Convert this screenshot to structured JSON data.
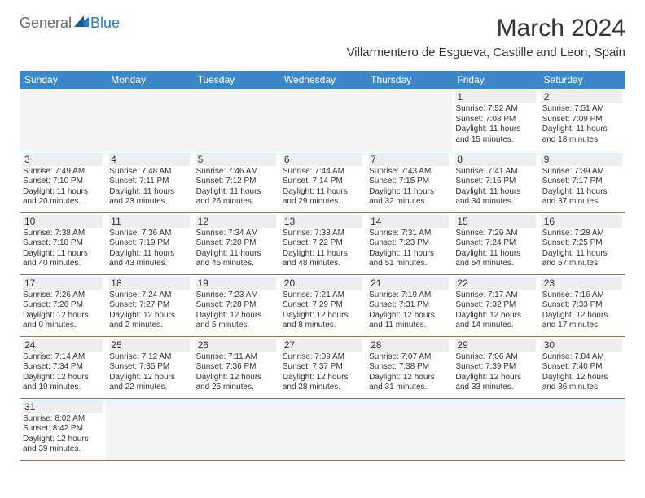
{
  "logo": {
    "part1": "General",
    "part2": "Blue"
  },
  "title": "March 2024",
  "location": "Villarmentero de Esgueva, Castille and Leon, Spain",
  "colors": {
    "header_bg": "#3b87c8",
    "header_text": "#ffffff",
    "daynum_bg": "#eeeeee",
    "empty_bg": "#f3f3f3",
    "border": "#3b87c8",
    "text": "#333333",
    "logo_gray": "#6a6a6a",
    "logo_blue": "#2d7bbf"
  },
  "weekdays": [
    "Sunday",
    "Monday",
    "Tuesday",
    "Wednesday",
    "Thursday",
    "Friday",
    "Saturday"
  ],
  "weeks": [
    [
      null,
      null,
      null,
      null,
      null,
      {
        "d": "1",
        "sr": "Sunrise: 7:52 AM",
        "ss": "Sunset: 7:08 PM",
        "dl1": "Daylight: 11 hours",
        "dl2": "and 15 minutes."
      },
      {
        "d": "2",
        "sr": "Sunrise: 7:51 AM",
        "ss": "Sunset: 7:09 PM",
        "dl1": "Daylight: 11 hours",
        "dl2": "and 18 minutes."
      }
    ],
    [
      {
        "d": "3",
        "sr": "Sunrise: 7:49 AM",
        "ss": "Sunset: 7:10 PM",
        "dl1": "Daylight: 11 hours",
        "dl2": "and 20 minutes."
      },
      {
        "d": "4",
        "sr": "Sunrise: 7:48 AM",
        "ss": "Sunset: 7:11 PM",
        "dl1": "Daylight: 11 hours",
        "dl2": "and 23 minutes."
      },
      {
        "d": "5",
        "sr": "Sunrise: 7:46 AM",
        "ss": "Sunset: 7:12 PM",
        "dl1": "Daylight: 11 hours",
        "dl2": "and 26 minutes."
      },
      {
        "d": "6",
        "sr": "Sunrise: 7:44 AM",
        "ss": "Sunset: 7:14 PM",
        "dl1": "Daylight: 11 hours",
        "dl2": "and 29 minutes."
      },
      {
        "d": "7",
        "sr": "Sunrise: 7:43 AM",
        "ss": "Sunset: 7:15 PM",
        "dl1": "Daylight: 11 hours",
        "dl2": "and 32 minutes."
      },
      {
        "d": "8",
        "sr": "Sunrise: 7:41 AM",
        "ss": "Sunset: 7:16 PM",
        "dl1": "Daylight: 11 hours",
        "dl2": "and 34 minutes."
      },
      {
        "d": "9",
        "sr": "Sunrise: 7:39 AM",
        "ss": "Sunset: 7:17 PM",
        "dl1": "Daylight: 11 hours",
        "dl2": "and 37 minutes."
      }
    ],
    [
      {
        "d": "10",
        "sr": "Sunrise: 7:38 AM",
        "ss": "Sunset: 7:18 PM",
        "dl1": "Daylight: 11 hours",
        "dl2": "and 40 minutes."
      },
      {
        "d": "11",
        "sr": "Sunrise: 7:36 AM",
        "ss": "Sunset: 7:19 PM",
        "dl1": "Daylight: 11 hours",
        "dl2": "and 43 minutes."
      },
      {
        "d": "12",
        "sr": "Sunrise: 7:34 AM",
        "ss": "Sunset: 7:20 PM",
        "dl1": "Daylight: 11 hours",
        "dl2": "and 46 minutes."
      },
      {
        "d": "13",
        "sr": "Sunrise: 7:33 AM",
        "ss": "Sunset: 7:22 PM",
        "dl1": "Daylight: 11 hours",
        "dl2": "and 48 minutes."
      },
      {
        "d": "14",
        "sr": "Sunrise: 7:31 AM",
        "ss": "Sunset: 7:23 PM",
        "dl1": "Daylight: 11 hours",
        "dl2": "and 51 minutes."
      },
      {
        "d": "15",
        "sr": "Sunrise: 7:29 AM",
        "ss": "Sunset: 7:24 PM",
        "dl1": "Daylight: 11 hours",
        "dl2": "and 54 minutes."
      },
      {
        "d": "16",
        "sr": "Sunrise: 7:28 AM",
        "ss": "Sunset: 7:25 PM",
        "dl1": "Daylight: 11 hours",
        "dl2": "and 57 minutes."
      }
    ],
    [
      {
        "d": "17",
        "sr": "Sunrise: 7:26 AM",
        "ss": "Sunset: 7:26 PM",
        "dl1": "Daylight: 12 hours",
        "dl2": "and 0 minutes."
      },
      {
        "d": "18",
        "sr": "Sunrise: 7:24 AM",
        "ss": "Sunset: 7:27 PM",
        "dl1": "Daylight: 12 hours",
        "dl2": "and 2 minutes."
      },
      {
        "d": "19",
        "sr": "Sunrise: 7:23 AM",
        "ss": "Sunset: 7:28 PM",
        "dl1": "Daylight: 12 hours",
        "dl2": "and 5 minutes."
      },
      {
        "d": "20",
        "sr": "Sunrise: 7:21 AM",
        "ss": "Sunset: 7:29 PM",
        "dl1": "Daylight: 12 hours",
        "dl2": "and 8 minutes."
      },
      {
        "d": "21",
        "sr": "Sunrise: 7:19 AM",
        "ss": "Sunset: 7:31 PM",
        "dl1": "Daylight: 12 hours",
        "dl2": "and 11 minutes."
      },
      {
        "d": "22",
        "sr": "Sunrise: 7:17 AM",
        "ss": "Sunset: 7:32 PM",
        "dl1": "Daylight: 12 hours",
        "dl2": "and 14 minutes."
      },
      {
        "d": "23",
        "sr": "Sunrise: 7:16 AM",
        "ss": "Sunset: 7:33 PM",
        "dl1": "Daylight: 12 hours",
        "dl2": "and 17 minutes."
      }
    ],
    [
      {
        "d": "24",
        "sr": "Sunrise: 7:14 AM",
        "ss": "Sunset: 7:34 PM",
        "dl1": "Daylight: 12 hours",
        "dl2": "and 19 minutes."
      },
      {
        "d": "25",
        "sr": "Sunrise: 7:12 AM",
        "ss": "Sunset: 7:35 PM",
        "dl1": "Daylight: 12 hours",
        "dl2": "and 22 minutes."
      },
      {
        "d": "26",
        "sr": "Sunrise: 7:11 AM",
        "ss": "Sunset: 7:36 PM",
        "dl1": "Daylight: 12 hours",
        "dl2": "and 25 minutes."
      },
      {
        "d": "27",
        "sr": "Sunrise: 7:09 AM",
        "ss": "Sunset: 7:37 PM",
        "dl1": "Daylight: 12 hours",
        "dl2": "and 28 minutes."
      },
      {
        "d": "28",
        "sr": "Sunrise: 7:07 AM",
        "ss": "Sunset: 7:38 PM",
        "dl1": "Daylight: 12 hours",
        "dl2": "and 31 minutes."
      },
      {
        "d": "29",
        "sr": "Sunrise: 7:06 AM",
        "ss": "Sunset: 7:39 PM",
        "dl1": "Daylight: 12 hours",
        "dl2": "and 33 minutes."
      },
      {
        "d": "30",
        "sr": "Sunrise: 7:04 AM",
        "ss": "Sunset: 7:40 PM",
        "dl1": "Daylight: 12 hours",
        "dl2": "and 36 minutes."
      }
    ],
    [
      {
        "d": "31",
        "sr": "Sunrise: 8:02 AM",
        "ss": "Sunset: 8:42 PM",
        "dl1": "Daylight: 12 hours",
        "dl2": "and 39 minutes."
      },
      null,
      null,
      null,
      null,
      null,
      null
    ]
  ]
}
